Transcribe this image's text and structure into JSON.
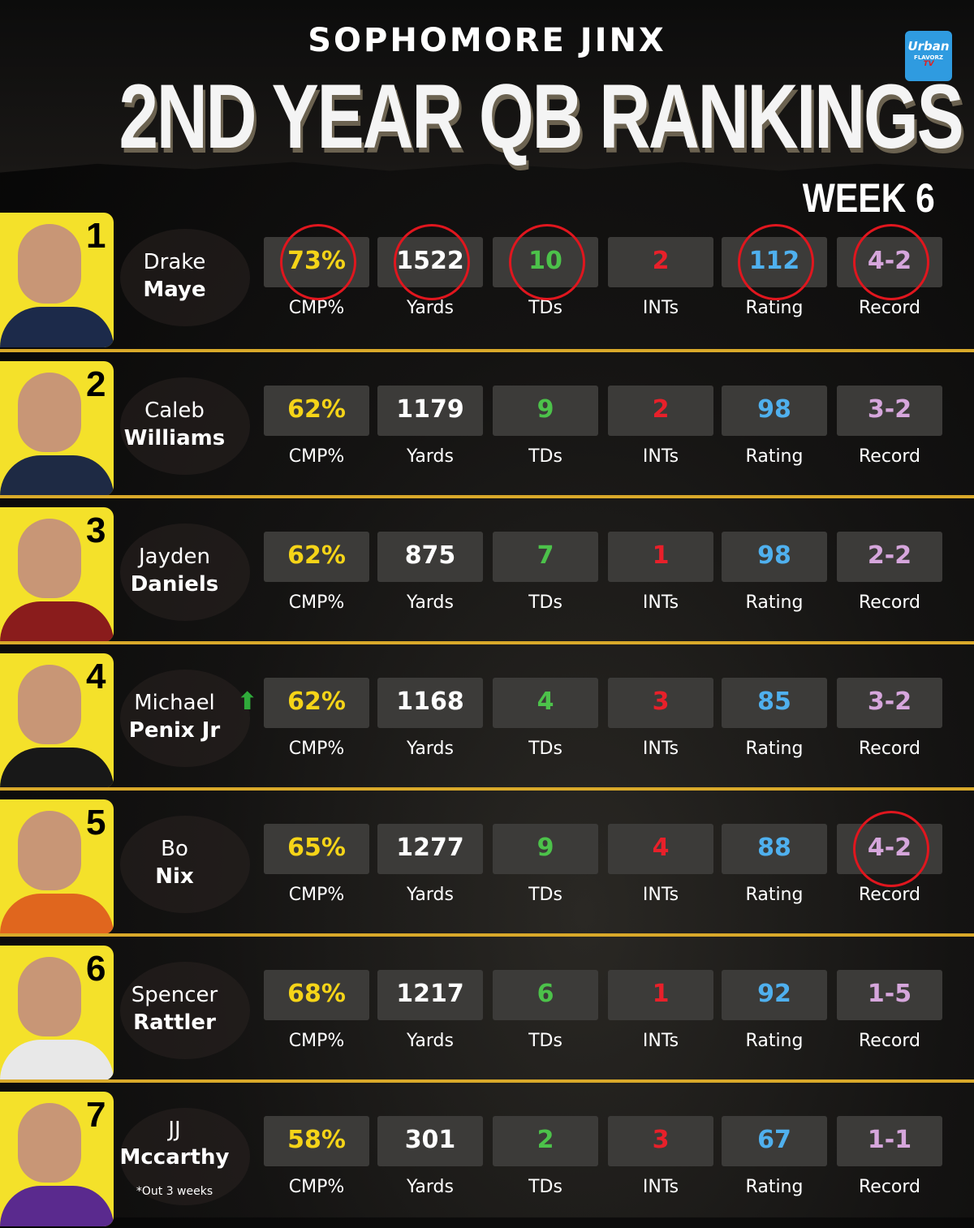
{
  "header": {
    "subtitle": "SOPHOMORE JINX",
    "title": "2ND YEAR QB RANKINGS",
    "week": "WEEK 6",
    "brand": {
      "line1": "Urban",
      "line2": "FLAVORZ",
      "line3": "TV"
    }
  },
  "stat_labels": [
    "CMP%",
    "Yards",
    "TDs",
    "INTs",
    "Rating",
    "Record"
  ],
  "stat_colors": [
    "#f5d418",
    "#ffffff",
    "#4cc24a",
    "#e8202a",
    "#4fb0ee",
    "#d6a6dc"
  ],
  "highlight_color": "#e0161e",
  "players": [
    {
      "rank": "1",
      "first": "Drake",
      "last": "Maye",
      "team_icon": "patriots-logo",
      "jersey": "#1c2a4a",
      "stats": [
        "73%",
        "1522",
        "10",
        "2",
        "112",
        "4-2"
      ],
      "circled": [
        0,
        1,
        2,
        4,
        5
      ]
    },
    {
      "rank": "2",
      "first": "Caleb",
      "last": "Williams",
      "team_icon": "bears-logo",
      "jersey": "#1e2a44",
      "stats": [
        "62%",
        "1179",
        "9",
        "2",
        "98",
        "3-2"
      ],
      "circled": []
    },
    {
      "rank": "3",
      "first": "Jayden",
      "last": "Daniels",
      "team_icon": "commanders-logo",
      "jersey": "#8a1c1c",
      "stats": [
        "62%",
        "875",
        "7",
        "1",
        "98",
        "2-2"
      ],
      "circled": []
    },
    {
      "rank": "4",
      "first": "Michael",
      "last": "Penix Jr",
      "team_icon": "falcons-logo",
      "jersey": "#181818",
      "stats": [
        "62%",
        "1168",
        "4",
        "3",
        "85",
        "3-2"
      ],
      "circled": [],
      "trend": "up-arrow"
    },
    {
      "rank": "5",
      "first": "Bo",
      "last": "Nix",
      "team_icon": "broncos-logo",
      "jersey": "#e0661e",
      "stats": [
        "65%",
        "1277",
        "9",
        "4",
        "88",
        "4-2"
      ],
      "circled": [
        5
      ]
    },
    {
      "rank": "6",
      "first": "Spencer",
      "last": "Rattler",
      "team_icon": "saints-logo",
      "jersey": "#e8e8e8",
      "stats": [
        "68%",
        "1217",
        "6",
        "1",
        "92",
        "1-5"
      ],
      "circled": []
    },
    {
      "rank": "7",
      "first": "JJ",
      "last": "Mccarthy",
      "team_icon": "vikings-logo",
      "jersey": "#5a2a8e",
      "stats": [
        "58%",
        "301",
        "2",
        "3",
        "67",
        "1-1"
      ],
      "circled": [],
      "note": "*Out 3 weeks"
    }
  ]
}
